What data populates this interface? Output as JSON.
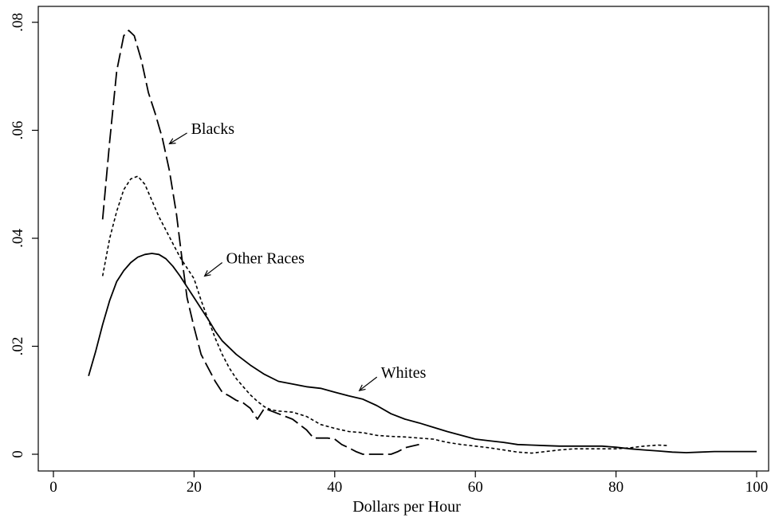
{
  "chart_data": {
    "type": "line",
    "title": "",
    "xlabel": "Dollars per Hour",
    "ylabel": "",
    "xlim": [
      0,
      100
    ],
    "ylim": [
      0,
      0.08
    ],
    "x_ticks": [
      0,
      20,
      40,
      60,
      80,
      100
    ],
    "x_tick_labels": [
      "0",
      "20",
      "40",
      "60",
      "80",
      "100"
    ],
    "y_ticks": [
      0,
      0.02,
      0.04,
      0.06,
      0.08
    ],
    "y_tick_labels": [
      "0",
      ".02",
      ".04",
      ".06",
      ".08"
    ],
    "grid": false,
    "legend": "none",
    "series": [
      {
        "name": "Blacks",
        "style": "long-dash",
        "points": [
          [
            7,
            0.0435
          ],
          [
            8,
            0.058
          ],
          [
            9,
            0.071
          ],
          [
            10,
            0.0775
          ],
          [
            10.7,
            0.0785
          ],
          [
            11.5,
            0.0775
          ],
          [
            12.5,
            0.073
          ],
          [
            13.5,
            0.067
          ],
          [
            14.5,
            0.063
          ],
          [
            15.5,
            0.0585
          ],
          [
            16.5,
            0.0525
          ],
          [
            17.5,
            0.0445
          ],
          [
            18.3,
            0.036
          ],
          [
            19,
            0.029
          ],
          [
            20,
            0.0235
          ],
          [
            21,
            0.0185
          ],
          [
            22,
            0.016
          ],
          [
            23,
            0.0135
          ],
          [
            24,
            0.0115
          ],
          [
            25,
            0.0108
          ],
          [
            26,
            0.01
          ],
          [
            27,
            0.0095
          ],
          [
            28,
            0.0085
          ],
          [
            29,
            0.0065
          ],
          [
            30,
            0.0085
          ],
          [
            31,
            0.008
          ],
          [
            32,
            0.0075
          ],
          [
            33,
            0.007
          ],
          [
            34,
            0.0065
          ],
          [
            35,
            0.0055
          ],
          [
            36,
            0.0045
          ],
          [
            37,
            0.003
          ],
          [
            38,
            0.003
          ],
          [
            39,
            0.003
          ],
          [
            40,
            0.0028
          ],
          [
            41,
            0.0018
          ],
          [
            42,
            0.0012
          ],
          [
            43,
            0.0005
          ],
          [
            44,
            0.0
          ],
          [
            46,
            0.0
          ],
          [
            48,
            0.0
          ],
          [
            49,
            0.0005
          ],
          [
            50,
            0.0012
          ],
          [
            51,
            0.0015
          ],
          [
            52,
            0.0018
          ]
        ]
      },
      {
        "name": "Other Races",
        "style": "short-dash",
        "points": [
          [
            7,
            0.033
          ],
          [
            8,
            0.04
          ],
          [
            9,
            0.045
          ],
          [
            10,
            0.049
          ],
          [
            11,
            0.051
          ],
          [
            12,
            0.0515
          ],
          [
            13,
            0.05
          ],
          [
            14,
            0.047
          ],
          [
            15,
            0.044
          ],
          [
            16,
            0.0415
          ],
          [
            17,
            0.039
          ],
          [
            18,
            0.0365
          ],
          [
            19,
            0.0345
          ],
          [
            20,
            0.0325
          ],
          [
            21,
            0.0285
          ],
          [
            22,
            0.025
          ],
          [
            23,
            0.0215
          ],
          [
            24,
            0.0185
          ],
          [
            25,
            0.016
          ],
          [
            26,
            0.014
          ],
          [
            27,
            0.0125
          ],
          [
            28,
            0.011
          ],
          [
            29,
            0.0098
          ],
          [
            30,
            0.0088
          ],
          [
            31,
            0.0082
          ],
          [
            32,
            0.008
          ],
          [
            34,
            0.0078
          ],
          [
            36,
            0.007
          ],
          [
            38,
            0.0055
          ],
          [
            40,
            0.0048
          ],
          [
            42,
            0.0042
          ],
          [
            44,
            0.004
          ],
          [
            46,
            0.0035
          ],
          [
            48,
            0.0033
          ],
          [
            50,
            0.0032
          ],
          [
            52,
            0.003
          ],
          [
            54,
            0.0028
          ],
          [
            56,
            0.0022
          ],
          [
            58,
            0.0018
          ],
          [
            60,
            0.0015
          ],
          [
            62,
            0.0012
          ],
          [
            64,
            0.0008
          ],
          [
            66,
            0.0004
          ],
          [
            68,
            0.0002
          ],
          [
            70,
            0.0005
          ],
          [
            72,
            0.0008
          ],
          [
            74,
            0.001
          ],
          [
            76,
            0.001
          ],
          [
            78,
            0.001
          ],
          [
            80,
            0.001
          ],
          [
            82,
            0.0012
          ],
          [
            84,
            0.0015
          ],
          [
            86,
            0.0017
          ],
          [
            87.5,
            0.0016
          ]
        ]
      },
      {
        "name": "Whites",
        "style": "solid",
        "points": [
          [
            5,
            0.0145
          ],
          [
            6,
            0.019
          ],
          [
            7,
            0.024
          ],
          [
            8,
            0.0285
          ],
          [
            9,
            0.032
          ],
          [
            10,
            0.034
          ],
          [
            11,
            0.0355
          ],
          [
            12,
            0.0365
          ],
          [
            13,
            0.037
          ],
          [
            14,
            0.0372
          ],
          [
            15,
            0.037
          ],
          [
            16,
            0.0362
          ],
          [
            17,
            0.0348
          ],
          [
            18,
            0.033
          ],
          [
            19,
            0.031
          ],
          [
            20,
            0.029
          ],
          [
            21,
            0.027
          ],
          [
            22,
            0.025
          ],
          [
            23,
            0.0228
          ],
          [
            24,
            0.021
          ],
          [
            26,
            0.0185
          ],
          [
            28,
            0.0165
          ],
          [
            30,
            0.0148
          ],
          [
            32,
            0.0135
          ],
          [
            34,
            0.013
          ],
          [
            36,
            0.0125
          ],
          [
            38,
            0.0122
          ],
          [
            40,
            0.0115
          ],
          [
            42,
            0.0108
          ],
          [
            44,
            0.0102
          ],
          [
            46,
            0.009
          ],
          [
            48,
            0.0075
          ],
          [
            50,
            0.0065
          ],
          [
            52,
            0.0058
          ],
          [
            54,
            0.005
          ],
          [
            56,
            0.0042
          ],
          [
            58,
            0.0035
          ],
          [
            60,
            0.0028
          ],
          [
            62,
            0.0025
          ],
          [
            64,
            0.0022
          ],
          [
            66,
            0.0018
          ],
          [
            68,
            0.0017
          ],
          [
            70,
            0.0016
          ],
          [
            72,
            0.0015
          ],
          [
            74,
            0.0015
          ],
          [
            76,
            0.0015
          ],
          [
            78,
            0.0015
          ],
          [
            80,
            0.0013
          ],
          [
            82,
            0.001
          ],
          [
            84,
            0.0008
          ],
          [
            86,
            0.0006
          ],
          [
            88,
            0.0004
          ],
          [
            90,
            0.0003
          ],
          [
            92,
            0.0004
          ],
          [
            94,
            0.0005
          ],
          [
            96,
            0.0005
          ],
          [
            98,
            0.0005
          ],
          [
            100,
            0.0005
          ]
        ]
      }
    ],
    "annotations": [
      {
        "text": "Blacks",
        "arrow_target": [
          16.5,
          0.0575
        ],
        "arrow_from": [
          19,
          0.0595
        ]
      },
      {
        "text": "Other Races",
        "arrow_target": [
          21.5,
          0.033
        ],
        "arrow_from": [
          24,
          0.0355
        ]
      },
      {
        "text": "Whites",
        "arrow_target": [
          43.5,
          0.0118
        ],
        "arrow_from": [
          46,
          0.0143
        ]
      }
    ]
  }
}
